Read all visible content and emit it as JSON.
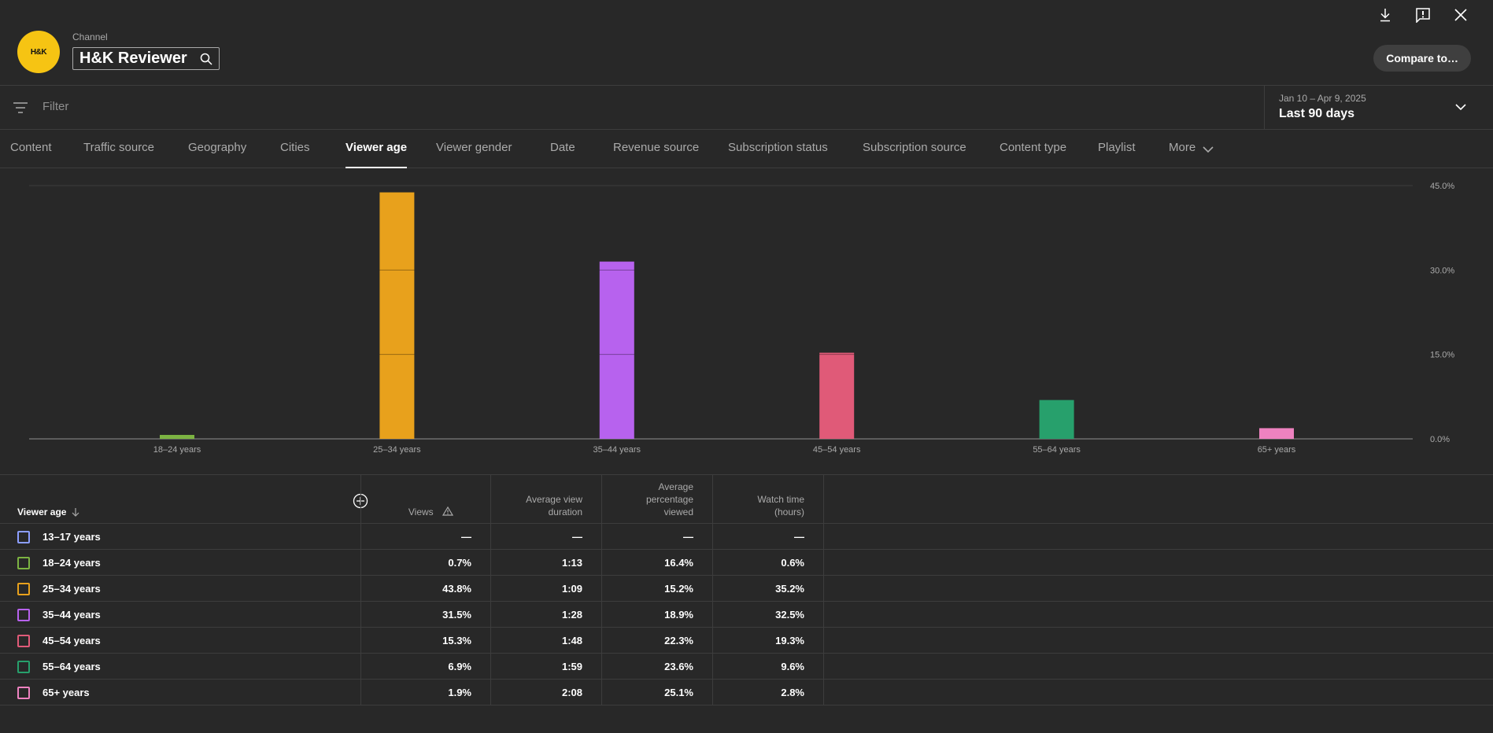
{
  "header": {
    "avatar_text": "H&K",
    "channel_label": "Channel",
    "channel_name": "H&K Reviewer",
    "compare_label": "Compare to…",
    "icons": [
      "download-icon",
      "feedback-icon",
      "close-icon",
      "search-icon"
    ]
  },
  "filter": {
    "placeholder": "Filter",
    "date_range": "Jan 10 – Apr 9, 2025",
    "date_label": "Last 90 days"
  },
  "tabs": [
    {
      "label": "Content",
      "active": false
    },
    {
      "label": "Traffic source",
      "active": false
    },
    {
      "label": "Geography",
      "active": false
    },
    {
      "label": "Cities",
      "active": false
    },
    {
      "label": "Viewer age",
      "active": true
    },
    {
      "label": "Viewer gender",
      "active": false
    },
    {
      "label": "Date",
      "active": false
    },
    {
      "label": "Revenue source",
      "active": false
    },
    {
      "label": "Subscription status",
      "active": false
    },
    {
      "label": "Subscription source",
      "active": false
    },
    {
      "label": "Content type",
      "active": false
    },
    {
      "label": "Playlist",
      "active": false
    },
    {
      "label": "More",
      "active": false
    }
  ],
  "chart_data": {
    "type": "bar",
    "categories": [
      "18–24 years",
      "25–34 years",
      "35–44 years",
      "45–54 years",
      "55–64 years",
      "65+ years"
    ],
    "values": [
      0.7,
      43.8,
      31.5,
      15.3,
      6.9,
      1.9
    ],
    "colors": [
      "#7cb342",
      "#e8a11c",
      "#b762ee",
      "#e05a78",
      "#27a06c",
      "#ee82c0"
    ],
    "yticks": [
      "45.0%",
      "30.0%",
      "15.0%",
      "0.0%"
    ],
    "ytick_values": [
      45,
      30,
      15,
      0
    ],
    "ylim": [
      0,
      45
    ],
    "grid": true
  },
  "table": {
    "headers": {
      "dimension": "Viewer age",
      "views": "Views",
      "avg_view_duration_1": "Average view",
      "avg_view_duration_2": "duration",
      "avg_pct_1": "Average",
      "avg_pct_2": "percentage",
      "avg_pct_3": "viewed",
      "watch_time_1": "Watch time",
      "watch_time_2": "(hours)"
    },
    "rows": [
      {
        "label": "13–17 years",
        "color": "#8c9eff",
        "views": "—",
        "duration": "—",
        "pct": "—",
        "watch": "—"
      },
      {
        "label": "18–24 years",
        "color": "#7cb342",
        "views": "0.7%",
        "duration": "1:13",
        "pct": "16.4%",
        "watch": "0.6%"
      },
      {
        "label": "25–34 years",
        "color": "#e8a11c",
        "views": "43.8%",
        "duration": "1:09",
        "pct": "15.2%",
        "watch": "35.2%"
      },
      {
        "label": "35–44 years",
        "color": "#b762ee",
        "views": "31.5%",
        "duration": "1:28",
        "pct": "18.9%",
        "watch": "32.5%"
      },
      {
        "label": "45–54 years",
        "color": "#e05a78",
        "views": "15.3%",
        "duration": "1:48",
        "pct": "22.3%",
        "watch": "19.3%"
      },
      {
        "label": "55–64 years",
        "color": "#27a06c",
        "views": "6.9%",
        "duration": "1:59",
        "pct": "23.6%",
        "watch": "9.6%"
      },
      {
        "label": "65+ years",
        "color": "#ee82c0",
        "views": "1.9%",
        "duration": "2:08",
        "pct": "25.1%",
        "watch": "2.8%"
      }
    ]
  }
}
